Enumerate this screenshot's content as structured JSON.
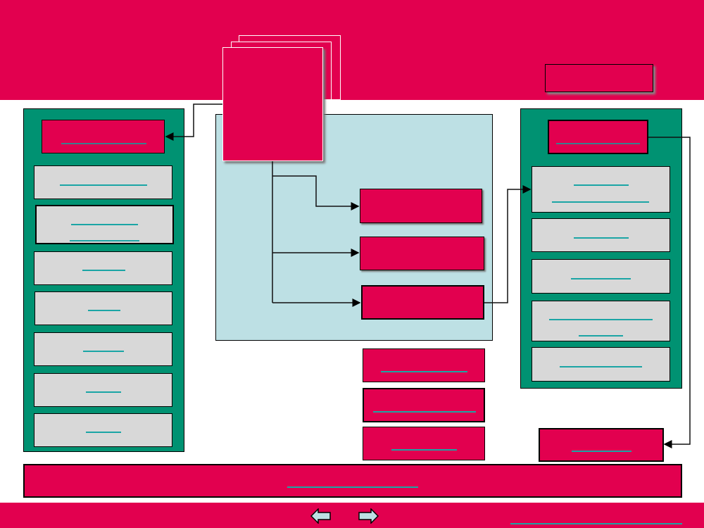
{
  "colors": {
    "brand": "#e2004f",
    "panel_green": "#009272",
    "center_area": "#bde0e4",
    "item_gray": "#d8d8d8",
    "link_underline": "#1ba5a5",
    "nav_arrow": "#bde0e4"
  },
  "icons": {
    "prev": "arrow-left-icon",
    "next": "arrow-right-icon"
  },
  "diagram": {
    "left_panel_items": 8,
    "right_panel_items": 6,
    "center_items": 3,
    "standalone_items": 4
  }
}
